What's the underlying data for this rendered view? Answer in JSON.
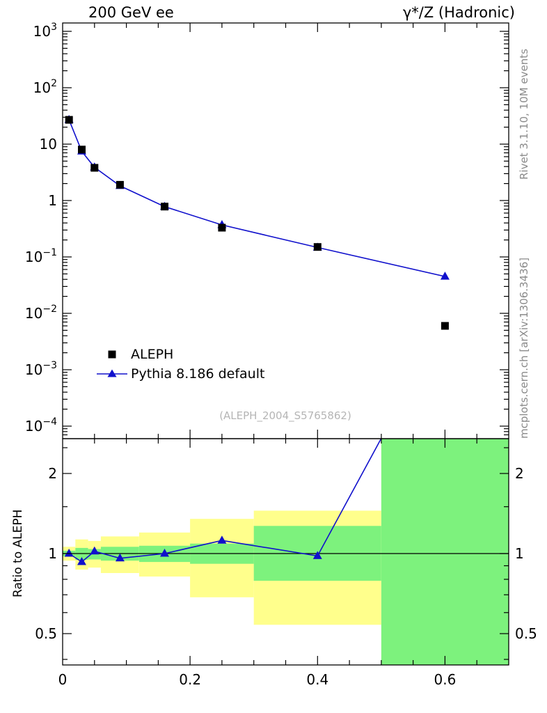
{
  "header": {
    "left": "200 GeV ee",
    "right": "γ*/Z (Hadronic)"
  },
  "side_notes": {
    "top_right": "Rivet 3.1.10,  10M events",
    "bottom_right": "mcplots.cern.ch [arXiv:1306.3436]"
  },
  "watermark": "(ALEPH_2004_S5765862)",
  "chart_data": {
    "type": "line",
    "title": "200 GeV ee",
    "right_title": "γ*/Z (Hadronic)",
    "x": [
      0.01,
      0.03,
      0.05,
      0.09,
      0.16,
      0.25,
      0.4,
      0.6
    ],
    "bin_edges": [
      0,
      0.02,
      0.04,
      0.06,
      0.12,
      0.2,
      0.3,
      0.5,
      0.7
    ],
    "series": [
      {
        "name": "ALEPH",
        "marker": "square",
        "color": "#000000",
        "line": false,
        "values": [
          27,
          8.0,
          3.8,
          1.9,
          0.78,
          0.33,
          0.15,
          0.006
        ]
      },
      {
        "name": "Pythia 8.186 default",
        "marker": "triangle",
        "color": "#1010cc",
        "line": true,
        "values": [
          27,
          7.45,
          3.88,
          1.82,
          0.78,
          0.37,
          0.147,
          0.045
        ]
      }
    ],
    "main_axis": {
      "scale": "log",
      "ticks_exp": [
        3,
        2,
        1,
        0,
        -1,
        -2,
        -3,
        -4
      ],
      "ylim": [
        0.0001,
        1000
      ]
    },
    "x_axis": {
      "lim": [
        0,
        0.7
      ],
      "major_ticks": [
        0,
        0.2,
        0.4,
        0.6
      ],
      "labels": [
        "0",
        "0.2",
        "0.4",
        "0.6"
      ]
    },
    "ratio": {
      "ylabel": "Ratio to ALEPH",
      "scale": "log",
      "ticks": [
        2,
        1,
        0.5
      ],
      "tick_labels": [
        "2",
        "1",
        "0.5"
      ],
      "ylim": [
        0.38,
        2.7
      ],
      "values": [
        1.0,
        0.93,
        1.02,
        0.96,
        1.0,
        1.12,
        0.98,
        7.5
      ],
      "band_colors": {
        "yellow": "#ffff8c",
        "green": "#7df27d"
      },
      "bands": [
        {
          "x0": 0.0,
          "x1": 0.02,
          "yellow": [
            0.94,
            1.06
          ],
          "green": [
            0.976,
            1.025
          ]
        },
        {
          "x0": 0.02,
          "x1": 0.04,
          "yellow": [
            0.87,
            1.13
          ],
          "green": [
            0.947,
            1.05
          ]
        },
        {
          "x0": 0.04,
          "x1": 0.06,
          "yellow": [
            0.885,
            1.115
          ],
          "green": [
            0.95,
            1.04
          ]
        },
        {
          "x0": 0.06,
          "x1": 0.12,
          "yellow": [
            0.845,
            1.16
          ],
          "green": [
            0.94,
            1.06
          ]
        },
        {
          "x0": 0.12,
          "x1": 0.2,
          "yellow": [
            0.82,
            1.2
          ],
          "green": [
            0.93,
            1.07
          ]
        },
        {
          "x0": 0.2,
          "x1": 0.3,
          "yellow": [
            0.685,
            1.35
          ],
          "green": [
            0.915,
            1.09
          ]
        },
        {
          "x0": 0.3,
          "x1": 0.5,
          "yellow": [
            0.54,
            1.45
          ],
          "green": [
            0.79,
            1.27
          ]
        },
        {
          "x0": 0.5,
          "x1": 0.7,
          "yellow": [
            0.38,
            2.7
          ],
          "green": [
            0.38,
            2.7
          ]
        }
      ]
    }
  }
}
